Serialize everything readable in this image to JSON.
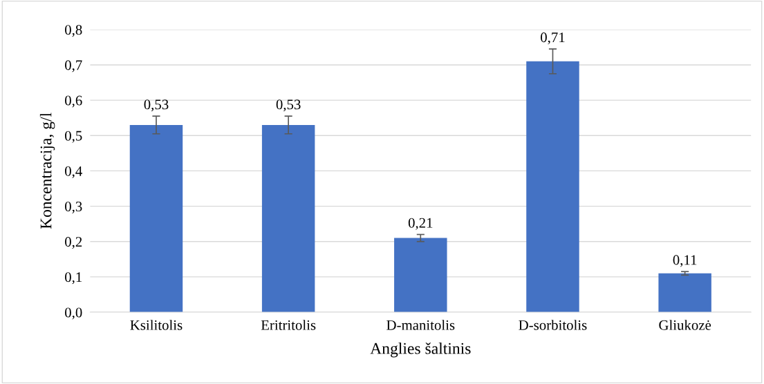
{
  "chart_data": {
    "type": "bar",
    "xlabel": "Anglies šaltinis",
    "ylabel": "Koncentracija, g/l",
    "categories": [
      "Ksilitolis",
      "Eritritolis",
      "D-manitolis",
      "D-sorbitolis",
      "Gliukozė"
    ],
    "values": [
      0.53,
      0.53,
      0.21,
      0.71,
      0.11
    ],
    "errors": [
      0.025,
      0.025,
      0.01,
      0.035,
      0.005
    ],
    "value_labels": [
      "0,53",
      "0,53",
      "0,21",
      "0,71",
      "0,11"
    ],
    "color": "#4472c4",
    "ylim": [
      0,
      0.8
    ],
    "yticks": [
      {
        "value": 0,
        "label": "0,0"
      },
      {
        "value": 0.1,
        "label": "0,1"
      },
      {
        "value": 0.2,
        "label": "0,2"
      },
      {
        "value": 0.3,
        "label": "0,3"
      },
      {
        "value": 0.4,
        "label": "0,4"
      },
      {
        "value": 0.5,
        "label": "0,5"
      },
      {
        "value": 0.6,
        "label": "0,6"
      },
      {
        "value": 0.7,
        "label": "0,7"
      },
      {
        "value": 0.8,
        "label": "0,8"
      }
    ],
    "grid": "y"
  }
}
